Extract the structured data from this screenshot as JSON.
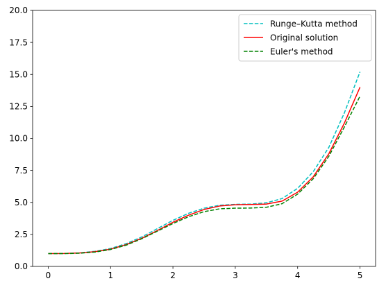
{
  "chart_data": {
    "type": "line",
    "title": "",
    "xlabel": "",
    "ylabel": "",
    "xlim": [
      -0.25,
      5.25
    ],
    "ylim": [
      0,
      20
    ],
    "xticks": [
      0,
      1,
      2,
      3,
      4,
      5
    ],
    "xtick_labels": [
      "0",
      "1",
      "2",
      "3",
      "4",
      "5"
    ],
    "yticks": [
      0,
      2.5,
      5,
      7.5,
      10,
      12.5,
      15,
      17.5,
      20
    ],
    "ytick_labels": [
      "0.0",
      "2.5",
      "5.0",
      "7.5",
      "10.0",
      "12.5",
      "15.0",
      "17.5",
      "20.0"
    ],
    "grid": false,
    "legend_position": "top-right",
    "x": [
      0,
      0.25,
      0.5,
      0.75,
      1,
      1.25,
      1.5,
      1.75,
      2,
      2.25,
      2.5,
      2.75,
      3,
      3.25,
      3.5,
      3.75,
      4,
      4.25,
      4.5,
      4.75,
      5
    ],
    "series": [
      {
        "name": "Runge–Kutta method",
        "color": "#00bfbf",
        "style": "dashed",
        "values": [
          1.0,
          1.01,
          1.06,
          1.18,
          1.4,
          1.78,
          2.3,
          2.95,
          3.6,
          4.15,
          4.55,
          4.78,
          4.85,
          4.87,
          4.97,
          5.3,
          6.1,
          7.4,
          9.3,
          12.0,
          15.2
        ]
      },
      {
        "name": "Original solution",
        "color": "#ff0000",
        "style": "solid",
        "values": [
          1.0,
          1.01,
          1.05,
          1.15,
          1.35,
          1.7,
          2.2,
          2.8,
          3.45,
          4.0,
          4.45,
          4.72,
          4.82,
          4.84,
          4.87,
          5.1,
          5.8,
          7.0,
          8.8,
          11.2,
          14.0
        ]
      },
      {
        "name": "Euler's method",
        "color": "#008000",
        "style": "dashed",
        "values": [
          1.0,
          1.0,
          1.03,
          1.12,
          1.32,
          1.66,
          2.16,
          2.75,
          3.35,
          3.88,
          4.28,
          4.5,
          4.55,
          4.56,
          4.62,
          4.9,
          5.65,
          6.85,
          8.6,
          10.9,
          13.3
        ]
      }
    ]
  }
}
